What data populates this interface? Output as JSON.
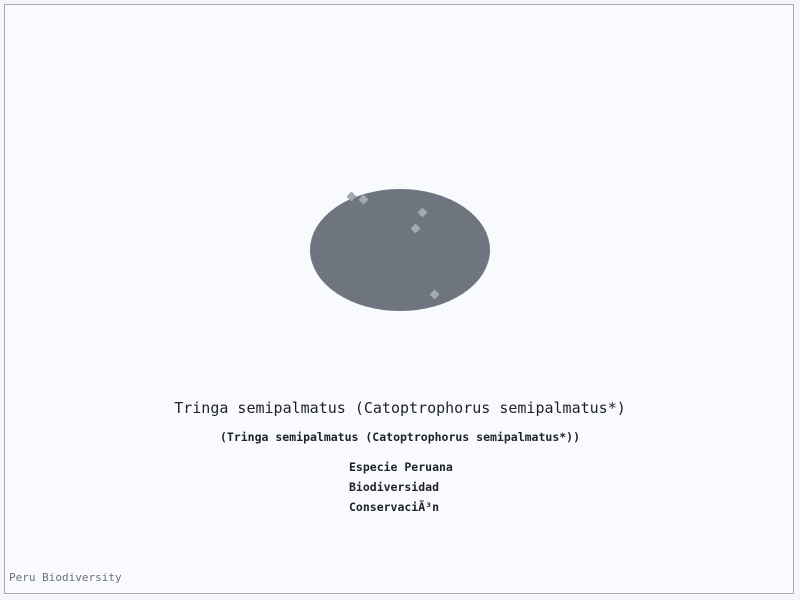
{
  "colors": {
    "background": "#f8fafd",
    "border": "#a9adb3",
    "blob": "#6e757e",
    "dots": "#a3a9b0",
    "text": "#1e2228",
    "footer_text": "#6b7078"
  },
  "image": {
    "shape": "ellipse",
    "icon": "species-image-placeholder"
  },
  "species": {
    "title": "Tringa semipalmatus (Catoptrophorus semipalmatus*)",
    "subtitle": "(Tringa semipalmatus (Catoptrophorus semipalmatus*))"
  },
  "tags": [
    "Especie Peruana",
    "Biodiversidad",
    "ConservaciÃ³n"
  ],
  "footer": {
    "brand": "Peru Biodiversity"
  }
}
